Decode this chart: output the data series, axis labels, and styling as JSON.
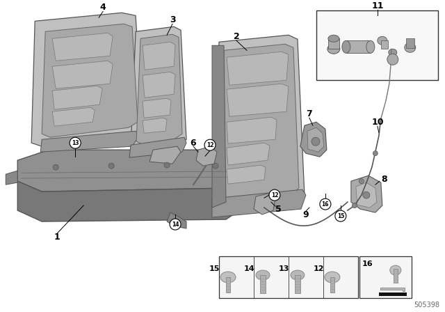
{
  "bg_color": "#ffffff",
  "diagram_id": "505398",
  "gray_light": "#c8c8c8",
  "gray_mid": "#aaaaaa",
  "gray_dark": "#888888",
  "gray_darker": "#666666",
  "gray_panel": "#b5b5b5",
  "black": "#000000",
  "edge_color": "#555555"
}
